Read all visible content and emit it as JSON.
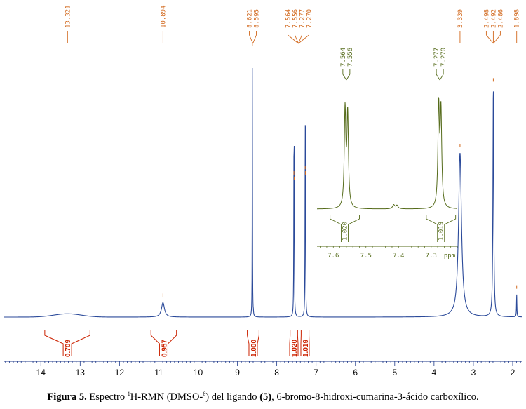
{
  "colors": {
    "spectrum": "#2b4a9a",
    "peak_labels": "#d2691e",
    "integrals": "#cc2200",
    "inset": "#556b1a",
    "axis": "#1f3a8a"
  },
  "caption": {
    "label": "Figura 5.",
    "pre": "Espectro",
    "sup1": "1",
    "mid": "H-RMN (DMSO-",
    "sup2": "6",
    "post": ") del ligando",
    "compound": "(5)",
    "tail": ", 6-bromo-8-hidroxi-cumarina-3-ácido carboxílico."
  },
  "chart_data": {
    "type": "line",
    "xlabel": "",
    "x_axis": {
      "reversed": true,
      "range": [
        14.95,
        1.75
      ],
      "ticks": [
        14,
        13,
        12,
        11,
        10,
        9,
        8,
        7,
        6,
        5,
        4,
        3,
        2
      ]
    },
    "peak_labels": [
      "13.321",
      "10.894",
      "8.621",
      "8.595",
      "7.564",
      "7.556",
      "7.277",
      "7.270",
      "3.339",
      "2.498",
      "2.492",
      "2.486",
      "1.898"
    ],
    "peak_groups": [
      {
        "center": 13.321,
        "labels": [
          "13.321"
        ]
      },
      {
        "center": 10.894,
        "labels": [
          "10.894"
        ]
      },
      {
        "center": 8.608,
        "labels": [
          "8.621",
          "8.595"
        ]
      },
      {
        "center": 7.45,
        "labels": [
          "7.564",
          "7.556",
          "7.277",
          "7.270"
        ]
      },
      {
        "center": 3.339,
        "labels": [
          "3.339"
        ]
      },
      {
        "center": 2.492,
        "labels": [
          "2.498",
          "2.492",
          "2.486"
        ]
      },
      {
        "center": 1.898,
        "labels": [
          "1.898"
        ]
      }
    ],
    "peaks": [
      {
        "ppm": 13.321,
        "height": 0.012,
        "width": 0.35,
        "shape": "gauss"
      },
      {
        "ppm": 10.894,
        "height": 0.053,
        "width": 0.045,
        "shape": "lorentz"
      },
      {
        "ppm": 8.621,
        "height": 0.97,
        "width": 0.004,
        "shape": "lorentz"
      },
      {
        "ppm": 8.595,
        "height": 0.01,
        "width": 0.004,
        "shape": "lorentz"
      },
      {
        "ppm": 7.564,
        "height": 0.5,
        "width": 0.005,
        "shape": "lorentz"
      },
      {
        "ppm": 7.556,
        "height": 0.48,
        "width": 0.005,
        "shape": "lorentz"
      },
      {
        "ppm": 7.277,
        "height": 0.52,
        "width": 0.005,
        "shape": "lorentz"
      },
      {
        "ppm": 7.27,
        "height": 0.5,
        "width": 0.005,
        "shape": "lorentz"
      },
      {
        "ppm": 3.339,
        "height": 0.6,
        "width": 0.045,
        "shape": "lorentz"
      },
      {
        "ppm": 2.492,
        "height": 0.84,
        "width": 0.012,
        "shape": "lorentz"
      },
      {
        "ppm": 1.898,
        "height": 0.083,
        "width": 0.006,
        "shape": "lorentz"
      }
    ],
    "integrals": [
      {
        "value": "0.709",
        "from": 13.9,
        "to": 12.75
      },
      {
        "value": "0.957",
        "from": 11.2,
        "to": 10.55
      },
      {
        "value": "1.000",
        "from": 8.75,
        "to": 8.45
      },
      {
        "value": "1.020",
        "from": 7.66,
        "to": 7.47
      },
      {
        "value": "1.019",
        "from": 7.38,
        "to": 7.18
      }
    ],
    "inset": {
      "xlabel": "ppm",
      "range": [
        7.65,
        7.22
      ],
      "ticks": [
        7.6,
        7.5,
        7.4,
        7.3
      ],
      "peak_labels": [
        "7.564",
        "7.556",
        "7.277",
        "7.270"
      ],
      "integrals": [
        {
          "value": "1.020",
          "from": 7.61,
          "to": 7.52
        },
        {
          "value": "1.019",
          "from": 7.315,
          "to": 7.225
        }
      ]
    }
  }
}
